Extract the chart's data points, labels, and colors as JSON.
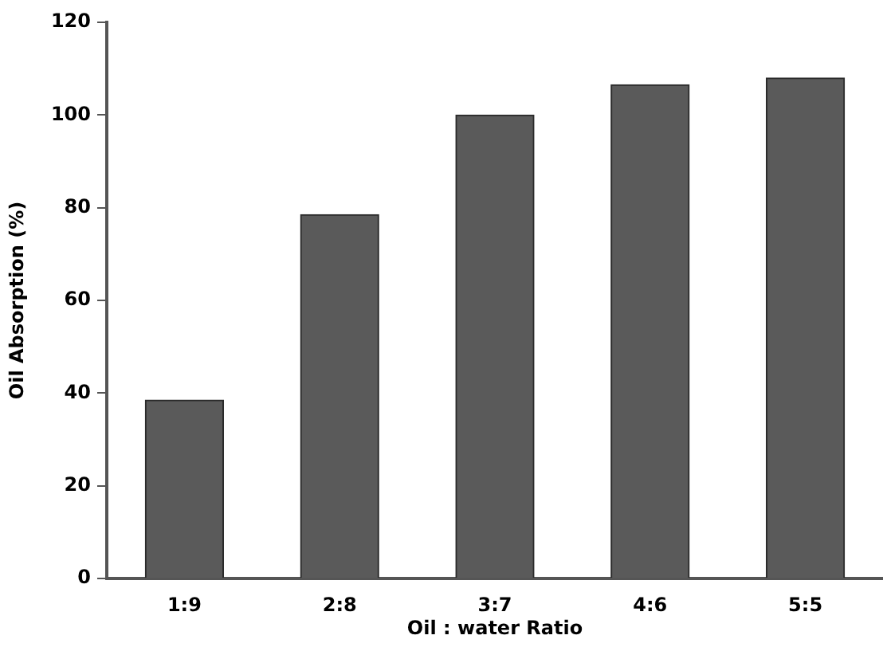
{
  "chart_data": {
    "type": "bar",
    "xlabel": "Oil : water Ratio",
    "ylabel": "Oil Absorption (%)",
    "categories": [
      "1:9",
      "2:8",
      "3:7",
      "4:6",
      "5:5"
    ],
    "values": [
      38.5,
      78.5,
      100,
      106.5,
      108
    ],
    "color": "#5a5a5a",
    "ylim": [
      0,
      120
    ],
    "yticks": [
      0,
      20,
      40,
      60,
      80,
      100,
      120
    ],
    "grid": false,
    "legend": false
  }
}
